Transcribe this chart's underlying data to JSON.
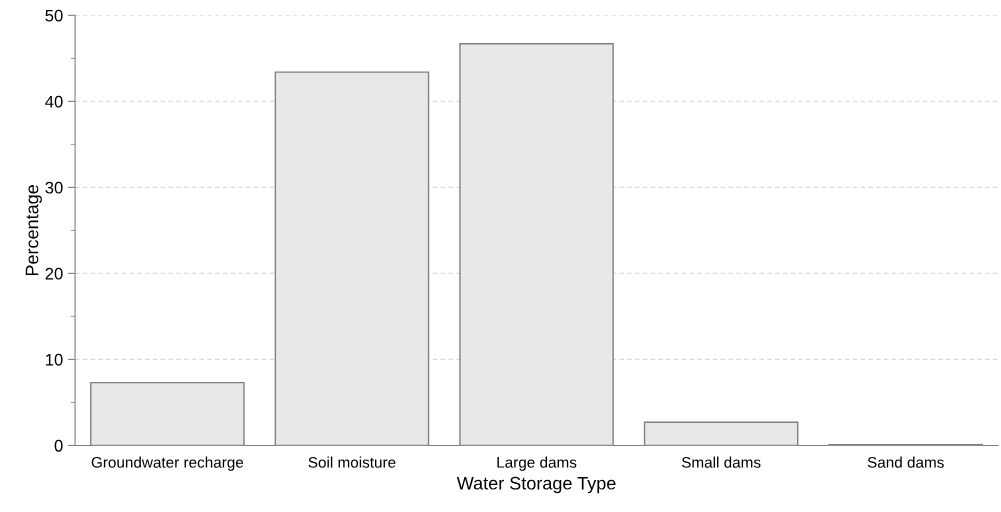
{
  "chart_data": {
    "type": "bar",
    "xlabel": "Water Storage Type",
    "ylabel": "Percentage",
    "categories": [
      "Groundwater recharge",
      "Soil moisture",
      "Large dams",
      "Small dams",
      "Sand dams"
    ],
    "values": [
      7.3,
      43.4,
      46.7,
      2.7,
      0.1
    ],
    "color": "#e8e8e8",
    "ylim": [
      0,
      50
    ],
    "yticks": [
      0,
      10,
      20,
      30,
      40,
      50
    ],
    "grid": "y"
  }
}
